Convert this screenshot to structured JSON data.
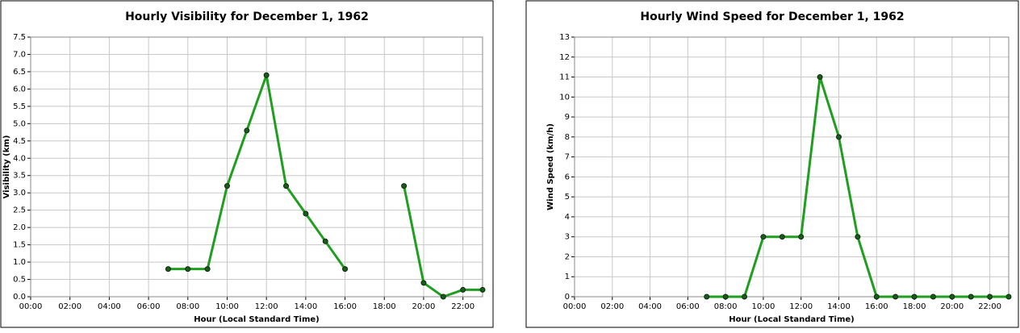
{
  "chart_data": [
    {
      "type": "line",
      "title": "Hourly Visibility for December 1, 1962",
      "xlabel": "Hour (Local Standard Time)",
      "ylabel": "Visibility (km)",
      "x": [
        7,
        8,
        9,
        10,
        11,
        12,
        13,
        14,
        15,
        16,
        17,
        18,
        19,
        20,
        21,
        22,
        23
      ],
      "series": [
        {
          "name": "Visibility",
          "color": "#1f9e1f",
          "values": [
            0.8,
            0.8,
            0.8,
            3.2,
            4.8,
            6.4,
            3.2,
            2.4,
            1.6,
            0.8,
            null,
            null,
            3.2,
            0.4,
            0,
            0.2,
            0.2
          ]
        }
      ],
      "xlim": [
        0,
        23
      ],
      "xticks": [
        {
          "value": 0,
          "label": "00:00"
        },
        {
          "value": 2,
          "label": "02:00"
        },
        {
          "value": 4,
          "label": "04:00"
        },
        {
          "value": 6,
          "label": "06:00"
        },
        {
          "value": 8,
          "label": "08:00"
        },
        {
          "value": 10,
          "label": "10:00"
        },
        {
          "value": 12,
          "label": "12:00"
        },
        {
          "value": 14,
          "label": "14:00"
        },
        {
          "value": 16,
          "label": "16:00"
        },
        {
          "value": 18,
          "label": "18:00"
        },
        {
          "value": 20,
          "label": "20:00"
        },
        {
          "value": 22,
          "label": "22:00"
        }
      ],
      "ylim": [
        0,
        7.5
      ],
      "yticks": [
        {
          "value": 0,
          "label": "0.0"
        },
        0.5,
        {
          "value": 1,
          "label": "1.0"
        },
        1.5,
        {
          "value": 2,
          "label": "2.0"
        },
        2.5,
        {
          "value": 3,
          "label": "3.0"
        },
        3.5,
        {
          "value": 4,
          "label": "4.0"
        },
        4.5,
        {
          "value": 5,
          "label": "5.0"
        },
        5.5,
        {
          "value": 6,
          "label": "6.0"
        },
        6.5,
        {
          "value": 7,
          "label": "7.0"
        },
        7.5
      ],
      "grid": true
    },
    {
      "type": "line",
      "title": "Hourly Wind Speed for December 1, 1962",
      "xlabel": "Hour (Local Standard Time)",
      "ylabel": "Wind Speed (km/h)",
      "x": [
        7,
        8,
        9,
        10,
        11,
        12,
        13,
        14,
        15,
        16,
        17,
        18,
        19,
        20,
        21,
        22,
        23
      ],
      "series": [
        {
          "name": "Wind Speed",
          "color": "#1f9e1f",
          "values": [
            0,
            0,
            0,
            3,
            3,
            3,
            11,
            8,
            3,
            0,
            0,
            0,
            0,
            0,
            0,
            0,
            0
          ]
        }
      ],
      "xlim": [
        0,
        23
      ],
      "xticks": [
        {
          "value": 0,
          "label": "00:00"
        },
        {
          "value": 2,
          "label": "02:00"
        },
        {
          "value": 4,
          "label": "04:00"
        },
        {
          "value": 6,
          "label": "06:00"
        },
        {
          "value": 8,
          "label": "08:00"
        },
        {
          "value": 10,
          "label": "10:00"
        },
        {
          "value": 12,
          "label": "12:00"
        },
        {
          "value": 14,
          "label": "14:00"
        },
        {
          "value": 16,
          "label": "16:00"
        },
        {
          "value": 18,
          "label": "18:00"
        },
        {
          "value": 20,
          "label": "20:00"
        },
        {
          "value": 22,
          "label": "22:00"
        }
      ],
      "ylim": [
        0,
        13
      ],
      "yticks": [
        0,
        1,
        2,
        3,
        4,
        5,
        6,
        7,
        8,
        9,
        10,
        11,
        12,
        13
      ],
      "grid": true
    }
  ]
}
